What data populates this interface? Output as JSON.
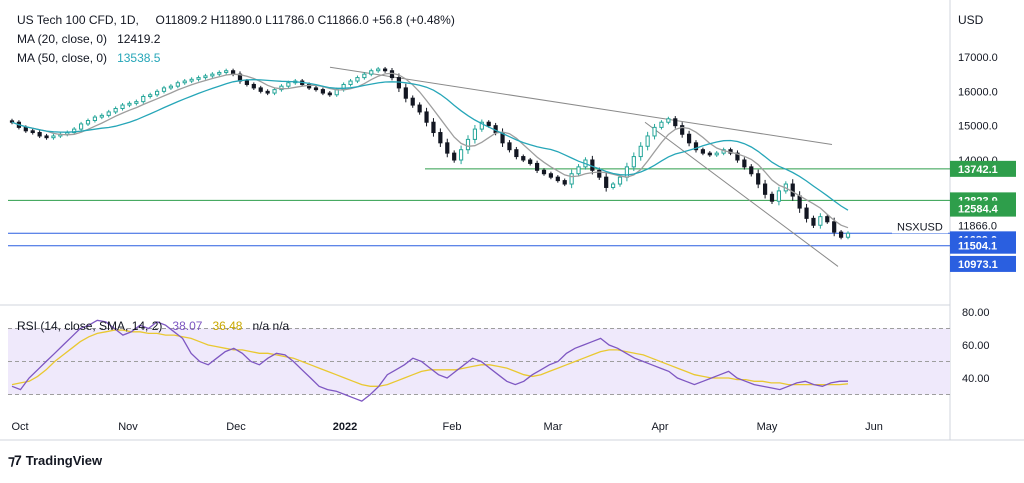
{
  "header": {
    "symbol": "US Tech 100 CFD, 1D,",
    "ohlc": "O11809.2  H11890.0  L11786.0  C11866.0  +56.8 (+0.48%)",
    "ma20_label": "MA (20, close, 0)",
    "ma20_value": "12419.2",
    "ma50_label": "MA (50, close, 0)",
    "ma50_value": "13538.5",
    "currency": "USD"
  },
  "rsi_header": {
    "label": "RSI (14, close, SMA, 14, 2)",
    "rsi_value": "38.07",
    "sma_value": "36.48",
    "na": "n/a  n/a"
  },
  "symbol_tag": "NSXUSD",
  "countdown": "15:53:27",
  "brand": "TradingView",
  "colors": {
    "up": "#26a69a",
    "down": "#131722",
    "ma20": "#9e9e9e",
    "ma50": "#26a6b8",
    "green_level": "#2e9e4b",
    "blue_level": "#2a5fe0",
    "rsi": "#7e57c2",
    "rsi_sma": "#e9c830",
    "rsi_band": "#efe9fb"
  },
  "chart_data": [
    {
      "type": "candlestick",
      "title": "US Tech 100 CFD, 1D",
      "x_ticks": [
        "Oct",
        "Nov",
        "Dec",
        "2022",
        "Feb",
        "Mar",
        "Apr",
        "May",
        "Jun"
      ],
      "y_ticks": [
        14000,
        15000,
        16000,
        17000
      ],
      "y_range": [
        10500,
        17800
      ],
      "price_labels": [
        {
          "text": "13742.1",
          "value": 13742.1,
          "kind": "green"
        },
        {
          "text": "12823.9",
          "value": 12823.9,
          "kind": "green"
        },
        {
          "text": "12584.4",
          "value": 12584.4,
          "kind": "green"
        },
        {
          "text": "11866.0",
          "value": 11866.0,
          "kind": "last"
        },
        {
          "text": "11689.0",
          "value": 11689.0,
          "kind": "blue"
        },
        {
          "text": "11504.1",
          "value": 11504.1,
          "kind": "blue"
        },
        {
          "text": "10973.1",
          "value": 10973.1,
          "kind": "blue"
        }
      ],
      "horizontal_levels": [
        {
          "value": 13742.1,
          "start": "Jan-2022",
          "color": "green"
        },
        {
          "value": 12823.9,
          "start": "Oct",
          "color": "green"
        },
        {
          "value": 11866.0,
          "start": "Oct",
          "color": "blue"
        },
        {
          "value": 11504.1,
          "start": "Oct",
          "color": "blue"
        }
      ],
      "trendlines": [
        {
          "from": [
            "Dec-end",
            16700
          ],
          "to": [
            "May-end",
            14450
          ]
        },
        {
          "from": [
            "Mar-end",
            15100
          ],
          "to": [
            "May-end",
            10900
          ]
        }
      ],
      "candles_approx": [
        15100,
        14950,
        14850,
        14800,
        14700,
        14650,
        14700,
        14750,
        14800,
        14900,
        15050,
        15150,
        15250,
        15300,
        15400,
        15500,
        15600,
        15650,
        15700,
        15850,
        15900,
        16000,
        16100,
        16150,
        16250,
        16300,
        16350,
        16400,
        16450,
        16500,
        16550,
        16600,
        16500,
        16300,
        16200,
        16100,
        16000,
        15950,
        16050,
        16150,
        16250,
        16300,
        16200,
        16100,
        16050,
        15950,
        15900,
        16050,
        16200,
        16300,
        16400,
        16500,
        16600,
        16650,
        16600,
        16400,
        16100,
        15800,
        15600,
        15400,
        15100,
        14800,
        14500,
        14200,
        14000,
        14300,
        14600,
        14900,
        15100,
        15000,
        14800,
        14500,
        14300,
        14100,
        14000,
        13900,
        13700,
        13600,
        13500,
        13400,
        13300,
        13600,
        13800,
        14000,
        13700,
        13500,
        13200,
        13300,
        13500,
        13800,
        14100,
        14400,
        14700,
        14950,
        15100,
        15200,
        15000,
        14750,
        14500,
        14300,
        14200,
        14150,
        14200,
        14300,
        14200,
        14000,
        13800,
        13600,
        13300,
        13000,
        12800,
        13100,
        13300,
        12950,
        12600,
        12300,
        12100,
        12350,
        12200,
        11900,
        11750,
        11866
      ]
    },
    {
      "type": "line",
      "title": "RSI (14, close, SMA, 14, 2)",
      "y_ticks": [
        40,
        60,
        80
      ],
      "bands": [
        30,
        50,
        70
      ],
      "series": [
        {
          "name": "RSI",
          "values": [
            35,
            33,
            40,
            45,
            50,
            55,
            60,
            65,
            70,
            72,
            75,
            74,
            70,
            66,
            68,
            72,
            70,
            74,
            72,
            68,
            64,
            55,
            50,
            48,
            52,
            56,
            58,
            55,
            50,
            48,
            52,
            55,
            54,
            50,
            45,
            40,
            35,
            33,
            32,
            30,
            28,
            26,
            30,
            35,
            42,
            45,
            48,
            52,
            50,
            46,
            42,
            40,
            44,
            48,
            52,
            50,
            46,
            42,
            38,
            36,
            38,
            42,
            45,
            48,
            50,
            55,
            58,
            60,
            62,
            64,
            60,
            58,
            55,
            52,
            50,
            48,
            46,
            44,
            40,
            38,
            36,
            38,
            40,
            42,
            44,
            40,
            38,
            36,
            35,
            34,
            33,
            35,
            37,
            38,
            36,
            35,
            37,
            38,
            38.07
          ]
        },
        {
          "name": "SMA",
          "values": [
            36,
            37,
            38,
            41,
            45,
            50,
            54,
            58,
            62,
            65,
            67,
            68,
            69,
            69,
            68,
            68,
            67,
            67,
            66,
            66,
            65,
            64,
            62,
            60,
            59,
            58,
            57,
            57,
            56,
            55,
            55,
            54,
            53,
            52,
            50,
            48,
            46,
            44,
            42,
            40,
            38,
            36,
            35,
            35,
            36,
            38,
            40,
            42,
            44,
            45,
            45,
            45,
            45,
            46,
            47,
            48,
            48,
            47,
            46,
            44,
            42,
            41,
            42,
            44,
            46,
            48,
            50,
            52,
            54,
            56,
            57,
            57,
            56,
            55,
            54,
            52,
            50,
            48,
            46,
            44,
            42,
            41,
            40,
            40,
            40,
            39,
            39,
            38,
            38,
            37,
            37,
            36,
            36,
            36,
            36,
            36,
            36,
            36,
            36.48
          ]
        }
      ]
    }
  ]
}
